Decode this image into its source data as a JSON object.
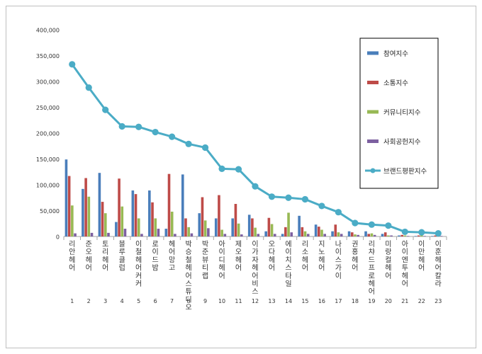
{
  "chart_data": {
    "type": "bar",
    "categories": [
      "1",
      "2",
      "3",
      "4",
      "5",
      "6",
      "7",
      "8",
      "9",
      "10",
      "11",
      "12",
      "13",
      "14",
      "15",
      "16",
      "17",
      "18",
      "19",
      "20",
      "21",
      "22",
      "23"
    ],
    "brands": [
      "리안헤어",
      "준오헤어",
      "토리헤어",
      "블루클럽",
      "이철헤어커커",
      "로이드밤",
      "헤어망고",
      "박승철헤어스튜디오",
      "박준뷰티랩",
      "아이디헤어",
      "제오헤어",
      "이가자헤어비스",
      "오다헤어",
      "에이치스타일",
      "리소헤어",
      "지노헤어",
      "나이스가이",
      "권홍헤어",
      "리챠드프로헤어",
      "미랑컬헤어",
      "아이엔투헤어",
      "이만헤어",
      "이훈헤어칼라"
    ],
    "ylim": [
      0,
      400000
    ],
    "yticks": [
      "0",
      "50,000",
      "100,000",
      "150,000",
      "200,000",
      "250,000",
      "300,000",
      "350,000",
      "400,000"
    ],
    "legend_position": "top-right",
    "series": [
      {
        "name": "참여지수",
        "color": "#4a7ebb",
        "values": [
          149000,
          92000,
          123000,
          28000,
          89000,
          89000,
          15000,
          120000,
          45000,
          35000,
          35000,
          42000,
          10000,
          5000,
          40000,
          23000,
          10000,
          10000,
          10000,
          5000,
          2000,
          1000,
          1000
        ]
      },
      {
        "name": "소통지수",
        "color": "#be4b48",
        "values": [
          117000,
          113000,
          67000,
          112000,
          82000,
          66000,
          121000,
          35000,
          76000,
          80000,
          63000,
          35000,
          36000,
          18000,
          18000,
          19000,
          23000,
          8000,
          5000,
          8000,
          3000,
          2000,
          2000
        ]
      },
      {
        "name": "커뮤니티지수",
        "color": "#98b954",
        "values": [
          60000,
          77000,
          45000,
          58000,
          35000,
          35000,
          48000,
          18000,
          31000,
          13000,
          25000,
          17000,
          24000,
          46000,
          10000,
          13000,
          8000,
          4000,
          6000,
          2000,
          2000,
          2000,
          2000
        ]
      },
      {
        "name": "사회공헌지수",
        "color": "#7d60a0",
        "values": [
          6000,
          7000,
          7000,
          15000,
          5000,
          15000,
          5000,
          6000,
          16000,
          5000,
          4000,
          5000,
          5000,
          8000,
          5000,
          5000,
          5000,
          3000,
          3000,
          2000,
          1000,
          1000,
          1000
        ]
      },
      {
        "name": "브랜드평판지수",
        "color": "#4bacc6",
        "type": "line",
        "values": [
          333000,
          288000,
          245000,
          213000,
          212000,
          202000,
          193000,
          179000,
          172000,
          131000,
          130000,
          97000,
          77000,
          75000,
          72000,
          59000,
          47000,
          26000,
          23000,
          21000,
          9000,
          8000,
          6000
        ]
      }
    ]
  }
}
